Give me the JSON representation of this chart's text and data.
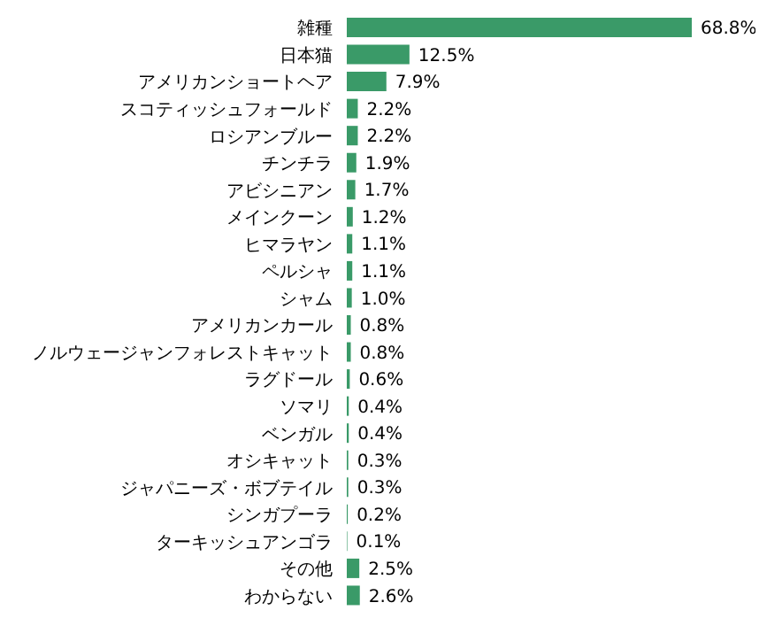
{
  "chart_data": {
    "type": "bar",
    "orientation": "horizontal",
    "categories": [
      "雑種",
      "日本猫",
      "アメリカンショートヘア",
      "スコティッシュフォールド",
      "ロシアンブルー",
      "チンチラ",
      "アビシニアン",
      "メインクーン",
      "ヒマラヤン",
      "ペルシャ",
      "シャム",
      "アメリカンカール",
      "ノルウェージャンフォレストキャット",
      "ラグドール",
      "ソマリ",
      "ベンガル",
      "オシキャット",
      "ジャパニーズ・ボブテイル",
      "シンガプーラ",
      "ターキッシュアンゴラ",
      "その他",
      "わからない"
    ],
    "values": [
      68.8,
      12.5,
      7.9,
      2.2,
      2.2,
      1.9,
      1.7,
      1.2,
      1.1,
      1.1,
      1.0,
      0.8,
      0.8,
      0.6,
      0.4,
      0.4,
      0.3,
      0.3,
      0.2,
      0.1,
      2.5,
      2.6
    ],
    "value_labels": [
      "68.8%",
      "12.5%",
      "7.9%",
      "2.2%",
      "2.2%",
      "1.9%",
      "1.7%",
      "1.2%",
      "1.1%",
      "1.1%",
      "1.0%",
      "0.8%",
      "0.8%",
      "0.6%",
      "0.4%",
      "0.4%",
      "0.3%",
      "0.3%",
      "0.2%",
      "0.1%",
      "2.5%",
      "2.6%"
    ],
    "color": "#3a9a68",
    "grid": false,
    "legend": false
  }
}
